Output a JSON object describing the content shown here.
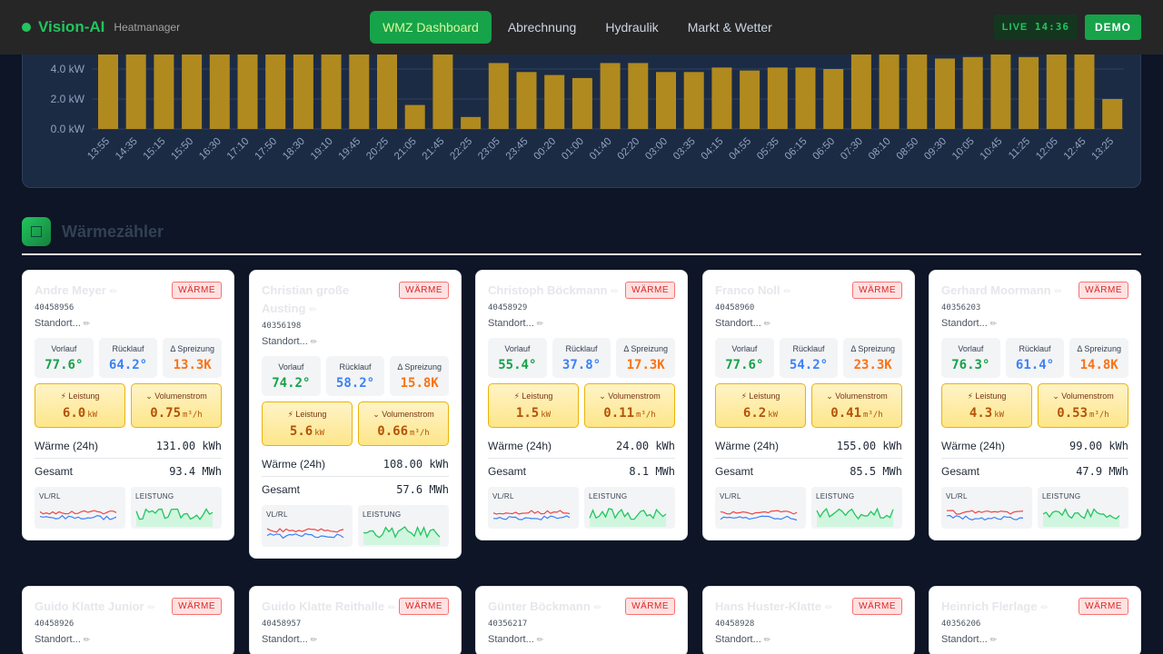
{
  "brand": {
    "name": "Vision-AI",
    "subtitle": "Heatmanager"
  },
  "tabs": [
    {
      "label": "WMZ Dashboard",
      "active": true
    },
    {
      "label": "Abrechnung",
      "active": false
    },
    {
      "label": "Hydraulik",
      "active": false
    },
    {
      "label": "Markt & Wetter",
      "active": false
    }
  ],
  "live": {
    "label": "LIVE",
    "time": "14:36"
  },
  "demo_label": "DEMO",
  "chart_data": {
    "type": "bar",
    "y_ticks": [
      "0.0 kW",
      "2.0 kW",
      "4.0 kW"
    ],
    "ylim": [
      0,
      8
    ],
    "categories": [
      "13:55",
      "14:35",
      "15:15",
      "15:50",
      "16:30",
      "17:10",
      "17:50",
      "18:30",
      "19:10",
      "19:45",
      "20:25",
      "21:05",
      "21:45",
      "22:25",
      "23:05",
      "23:45",
      "00:20",
      "01:00",
      "01:40",
      "02:20",
      "03:00",
      "03:35",
      "04:15",
      "04:55",
      "05:35",
      "06:15",
      "06:50",
      "07:30",
      "08:10",
      "08:50",
      "09:30",
      "10:05",
      "10:45",
      "11:25",
      "12:05",
      "12:45",
      "13:25"
    ],
    "values": [
      7.5,
      7.5,
      7.5,
      7.5,
      7.5,
      7.5,
      7.5,
      7.5,
      7.5,
      7.5,
      7.5,
      1.6,
      7.5,
      0.8,
      4.4,
      3.8,
      3.6,
      3.4,
      4.4,
      4.4,
      3.8,
      3.8,
      4.1,
      3.9,
      4.1,
      4.1,
      4.0,
      7.5,
      7.5,
      7.5,
      4.7,
      4.8,
      7.5,
      4.8,
      7.5,
      7.5,
      2.0
    ],
    "color": "#b08a1e"
  },
  "section": {
    "title": "Wärmezähler"
  },
  "labels": {
    "badge": "WÄRME",
    "vorlauf": "Vorlauf",
    "ruecklauf": "Rücklauf",
    "spreizung": "Δ Spreizung",
    "leistung": "⚡ Leistung",
    "volumenstrom": "⌄ Volumenstrom",
    "kw": "kW",
    "m3h": "m³/h",
    "waerme24": "Wärme (24h)",
    "gesamt": "Gesamt",
    "vlrl": "VL/RL",
    "leistung_spark": "LEISTUNG",
    "standort": "Standort...",
    "edit_icon": "✏",
    "pen_icon": "✏"
  },
  "cards": [
    {
      "name": "Andre Meyer",
      "id": "40458956",
      "vl": "77.6°",
      "rl": "64.2°",
      "sp": "13.3K",
      "power": "6.0",
      "flow": "0.75",
      "heat24": "131.00 kWh",
      "total": "93.4 MWh"
    },
    {
      "name": "Christian große Austing",
      "id": "40356198",
      "vl": "74.2°",
      "rl": "58.2°",
      "sp": "15.8K",
      "power": "5.6",
      "flow": "0.66",
      "heat24": "108.00 kWh",
      "total": "57.6 MWh"
    },
    {
      "name": "Christoph Böckmann",
      "id": "40458929",
      "vl": "55.4°",
      "rl": "37.8°",
      "sp": "17.3K",
      "power": "1.5",
      "flow": "0.11",
      "heat24": "24.00 kWh",
      "total": "8.1 MWh"
    },
    {
      "name": "Franco Noll",
      "id": "40458960",
      "vl": "77.6°",
      "rl": "54.2°",
      "sp": "23.3K",
      "power": "6.2",
      "flow": "0.41",
      "heat24": "155.00 kWh",
      "total": "85.5 MWh"
    },
    {
      "name": "Gerhard Moormann",
      "id": "40356203",
      "vl": "76.3°",
      "rl": "61.4°",
      "sp": "14.8K",
      "power": "4.3",
      "flow": "0.53",
      "heat24": "99.00 kWh",
      "total": "47.9 MWh"
    },
    {
      "name": "Guido Klatte Junior",
      "id": "40458926"
    },
    {
      "name": "Guido Klatte Reithalle",
      "id": "40458957"
    },
    {
      "name": "Günter Böckmann",
      "id": "40356217"
    },
    {
      "name": "Hans Huster-Klatte",
      "id": "40458928"
    },
    {
      "name": "Heinrich Flerlage",
      "id": "40356206"
    }
  ]
}
